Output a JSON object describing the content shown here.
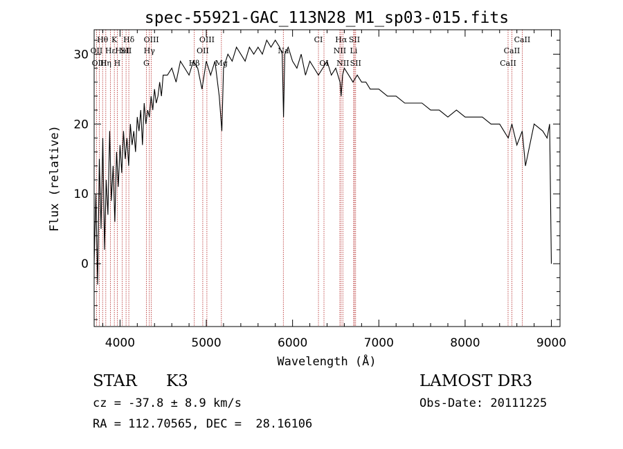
{
  "chart_data": {
    "type": "line",
    "title": "spec-55921-GAC_113N28_M1_sp03-015.fits",
    "xlabel": "Wavelength (Å)",
    "ylabel": "Flux (relative)",
    "xlim": [
      3700,
      9100
    ],
    "ylim": [
      -9,
      33.5
    ],
    "xticks": [
      4000,
      5000,
      6000,
      7000,
      8000,
      9000
    ],
    "yticks": [
      0,
      10,
      20,
      30
    ],
    "grid": false,
    "series": [
      {
        "name": "flux",
        "x": [
          3700,
          3720,
          3740,
          3760,
          3780,
          3800,
          3820,
          3840,
          3860,
          3880,
          3900,
          3920,
          3940,
          3960,
          3980,
          4000,
          4020,
          4040,
          4060,
          4080,
          4100,
          4120,
          4140,
          4160,
          4180,
          4200,
          4220,
          4240,
          4260,
          4280,
          4300,
          4320,
          4340,
          4360,
          4380,
          4400,
          4420,
          4440,
          4460,
          4480,
          4500,
          4550,
          4600,
          4650,
          4700,
          4750,
          4800,
          4850,
          4900,
          4950,
          5000,
          5050,
          5100,
          5150,
          5180,
          5200,
          5250,
          5300,
          5350,
          5400,
          5450,
          5500,
          5550,
          5600,
          5650,
          5700,
          5750,
          5800,
          5850,
          5880,
          5895,
          5910,
          5950,
          6000,
          6050,
          6100,
          6150,
          6200,
          6250,
          6300,
          6350,
          6400,
          6450,
          6500,
          6550,
          6563,
          6580,
          6600,
          6650,
          6700,
          6750,
          6800,
          6850,
          6900,
          6950,
          7000,
          7100,
          7200,
          7300,
          7400,
          7500,
          7600,
          7700,
          7800,
          7900,
          8000,
          8100,
          8200,
          8300,
          8400,
          8450,
          8500,
          8542,
          8600,
          8662,
          8700,
          8800,
          8900,
          8950,
          8980,
          9000
        ],
        "values": [
          0,
          10,
          -3,
          15,
          5,
          18,
          2,
          12,
          7,
          19,
          9,
          14,
          6,
          16,
          11,
          17,
          13,
          19,
          15,
          18,
          14,
          20,
          17,
          19,
          16,
          21,
          19,
          22,
          17,
          23,
          20,
          22,
          21,
          24,
          22,
          25,
          23,
          24,
          26,
          24,
          27,
          27,
          28,
          26,
          29,
          28,
          27,
          29,
          28,
          25,
          29,
          27,
          29,
          24,
          19,
          28,
          30,
          29,
          31,
          30,
          29,
          31,
          30,
          31,
          30,
          32,
          31,
          32,
          31,
          30,
          21,
          30,
          31,
          29,
          28,
          30,
          27,
          29,
          28,
          27,
          28,
          29,
          27,
          28,
          26,
          24,
          27,
          28,
          27,
          26,
          27,
          26,
          26,
          25,
          25,
          25,
          24,
          24,
          23,
          23,
          23,
          22,
          22,
          21,
          22,
          21,
          21,
          21,
          20,
          20,
          19,
          18,
          20,
          17,
          19,
          14,
          20,
          19,
          18,
          20,
          0
        ]
      }
    ],
    "lines": [
      {
        "label": "Hθ",
        "x": 3798,
        "row": 0
      },
      {
        "label": "K",
        "x": 3934,
        "row": 0
      },
      {
        "label": "Hδ",
        "x": 4102,
        "row": 0
      },
      {
        "label": "OIII",
        "x": 4363,
        "row": 0
      },
      {
        "label": "OIII",
        "x": 5007,
        "row": 0
      },
      {
        "label": "CI",
        "x": 6300,
        "row": 0
      },
      {
        "label": "Hα",
        "x": 6563,
        "row": 0
      },
      {
        "label": "SII",
        "x": 6717,
        "row": 0
      },
      {
        "label": "CaII",
        "x": 8662,
        "row": 0
      },
      {
        "label": "OII",
        "x": 3727,
        "row": 1
      },
      {
        "label": "Hε",
        "x": 3889,
        "row": 1
      },
      {
        "label": "HeI",
        "x": 4026,
        "row": 1
      },
      {
        "label": "SII",
        "x": 4070,
        "row": 1
      },
      {
        "label": "Hγ",
        "x": 4340,
        "row": 1
      },
      {
        "label": "OII",
        "x": 4959,
        "row": 1
      },
      {
        "label": "Na",
        "x": 5893,
        "row": 1
      },
      {
        "label": "NII",
        "x": 6548,
        "row": 1
      },
      {
        "label": "Li",
        "x": 6708,
        "row": 1
      },
      {
        "label": "CaII",
        "x": 8542,
        "row": 1
      },
      {
        "label": "OIII",
        "x": 3760,
        "row": 2
      },
      {
        "label": "Hη",
        "x": 3835,
        "row": 2
      },
      {
        "label": "H",
        "x": 3968,
        "row": 2
      },
      {
        "label": "G",
        "x": 4305,
        "row": 2
      },
      {
        "label": "Hβ",
        "x": 4861,
        "row": 2
      },
      {
        "label": "Mg",
        "x": 5175,
        "row": 2
      },
      {
        "label": "OI",
        "x": 6364,
        "row": 2
      },
      {
        "label": "NII",
        "x": 6583,
        "row": 2
      },
      {
        "label": "SII",
        "x": 6731,
        "row": 2
      },
      {
        "label": "CaII",
        "x": 8498,
        "row": 2
      }
    ]
  },
  "footer": {
    "obj_class": "STAR",
    "subclass": "K3",
    "cz": "cz = -37.8 ± 8.9 km/s",
    "radec": "RA = 112.70565, DEC =  28.16106",
    "survey": "LAMOST DR3",
    "obs_date": "Obs-Date: 20111225"
  }
}
